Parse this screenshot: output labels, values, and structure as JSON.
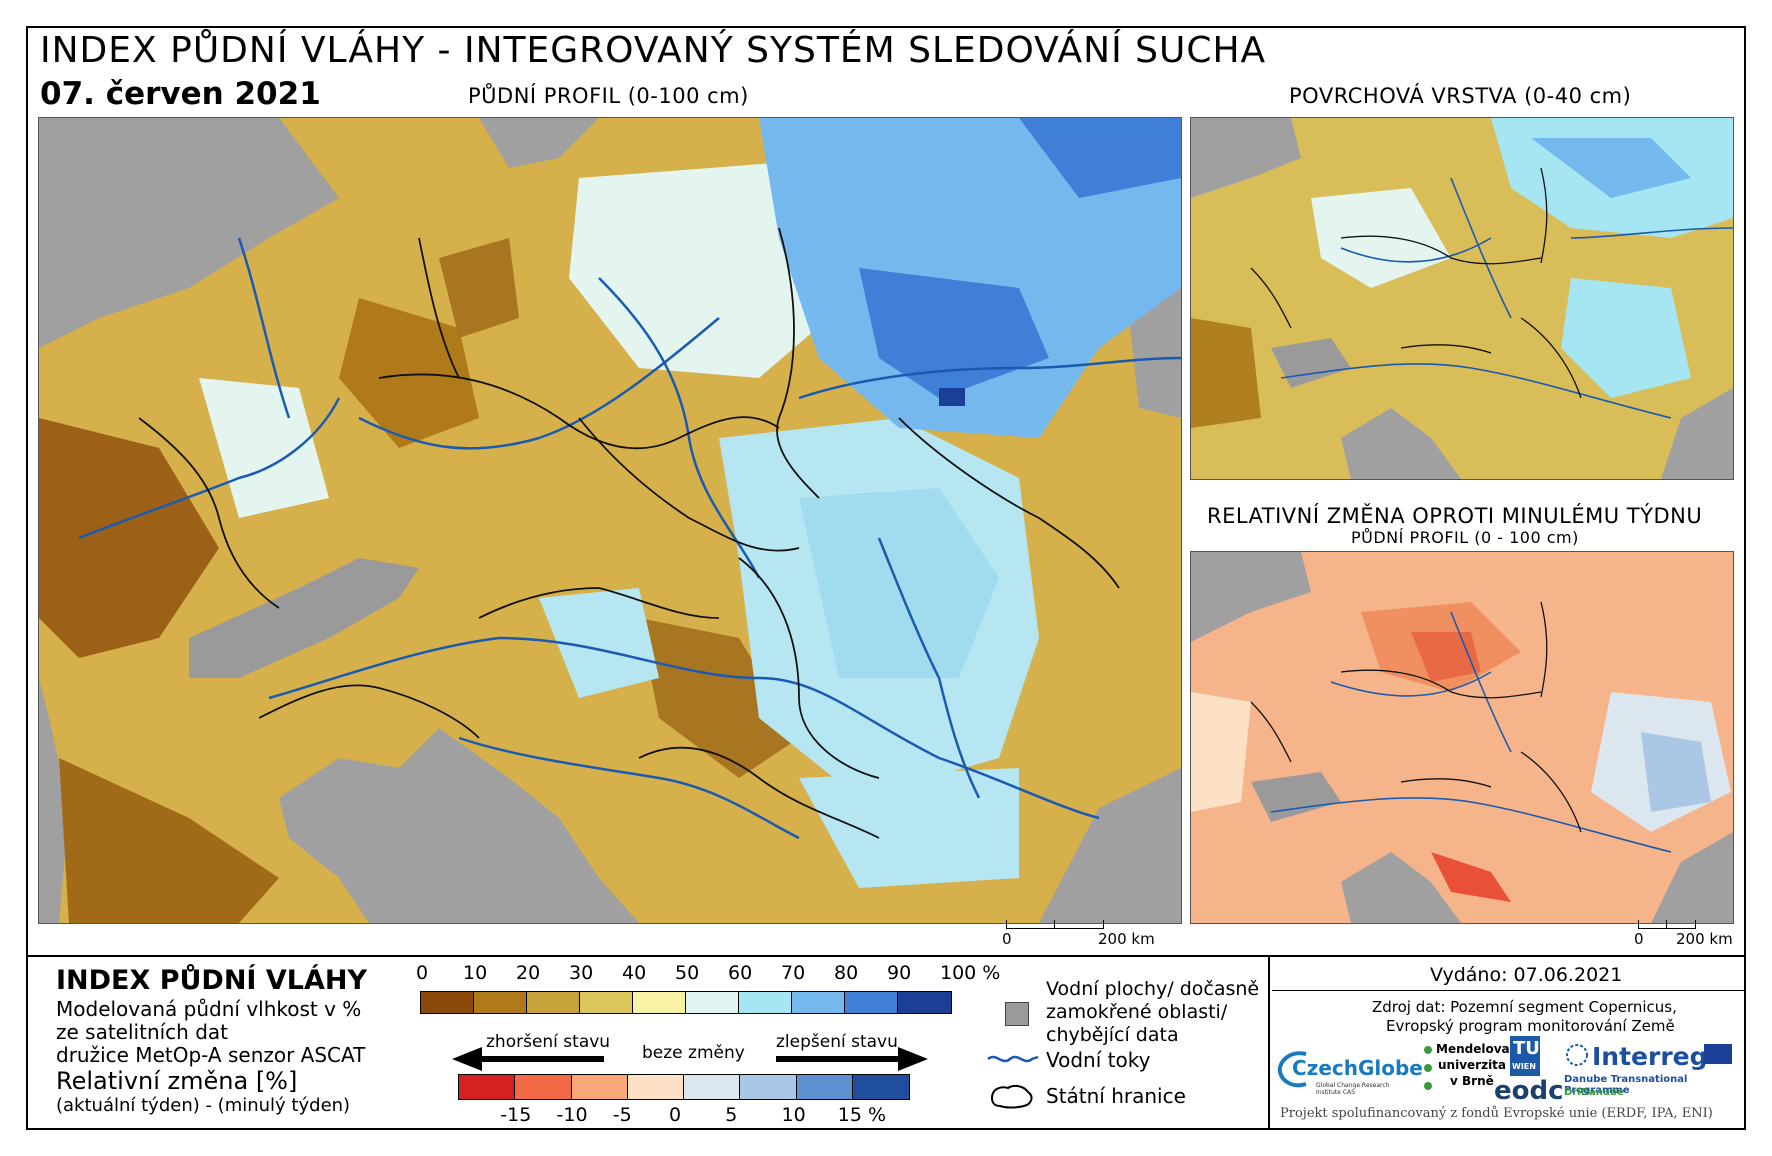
{
  "header": {
    "title": "INDEX PŮDNÍ VLÁHY - INTEGROVANÝ SYSTÉM SLEDOVÁNÍ SUCHA",
    "date": "07. červen 2021"
  },
  "maps": {
    "main_label": "PŮDNÍ PROFIL (0-100 cm)",
    "surface_label": "POVRCHOVÁ VRSTVA (0-40 cm)",
    "change_label": "RELATIVNÍ ZMĚNA OPROTI MINULÉMU TÝDNU",
    "change_sublabel": "PŮDNÍ PROFIL (0 - 100 cm)",
    "scale_main": {
      "zero": "0",
      "end": "200 km"
    },
    "scale_small": {
      "zero": "0",
      "end": "200 km"
    }
  },
  "legend": {
    "title": "INDEX PŮDNÍ VLÁHY",
    "desc1": "Modelovaná půdní vlhkost v %",
    "desc2": "ze satelitních dat",
    "desc3": "družice MetOp-A senzor ASCAT",
    "rel_title": "Relativní změna [%]",
    "rel_desc": "(aktuální týden) - (minulý týden)",
    "index_ticks": [
      "0",
      "10",
      "20",
      "30",
      "40",
      "50",
      "60",
      "70",
      "80",
      "90",
      "100 %"
    ],
    "index_colors": [
      "#8b4a0c",
      "#b07a1a",
      "#c8a23a",
      "#dcc55a",
      "#f7f2a4",
      "#e0f5f2",
      "#a6e6f2",
      "#74b8ee",
      "#3f7fd8",
      "#1c3f96"
    ],
    "change_ticks": [
      "-15",
      "-10",
      "-5",
      "0",
      "5",
      "10",
      "15 %"
    ],
    "change_colors": [
      "#d72020",
      "#f06a45",
      "#f8a878",
      "#fde1c5",
      "#dce6ef",
      "#aac8e6",
      "#5e90d2",
      "#1f4e9e"
    ],
    "worse": "zhoršení stavu",
    "none": "beze změny",
    "better": "zlepšení stavu",
    "water_bodies": [
      "Vodní plochy/ dočasně",
      "zamokřené oblasti/",
      "chybějící data"
    ],
    "rivers": "Vodní toky",
    "borders": "Státní hranice"
  },
  "info": {
    "issued": "Vydáno: 07.06.2021",
    "source1": "Zdroj dat: Pozemní segment Copernicus,",
    "source2": "Evropský program monitorování Země",
    "funding": "Projekt spolufinancovaný z fondů Evropské unie (ERDF, IPA, ENI)",
    "logos": {
      "czechglobe": "CzechGlobe",
      "czechglobe_sub": "Global Change Research Institute CAS",
      "mendel1": "Mendelova",
      "mendel2": "univerzita",
      "mendel3": "v Brně",
      "tu": "TU",
      "tu_sub": "WIEN",
      "eodc": "eodc",
      "interreg": "Interreg",
      "interreg_sub": "Danube Transnational Programme",
      "dridanube": "DriDanube"
    }
  }
}
